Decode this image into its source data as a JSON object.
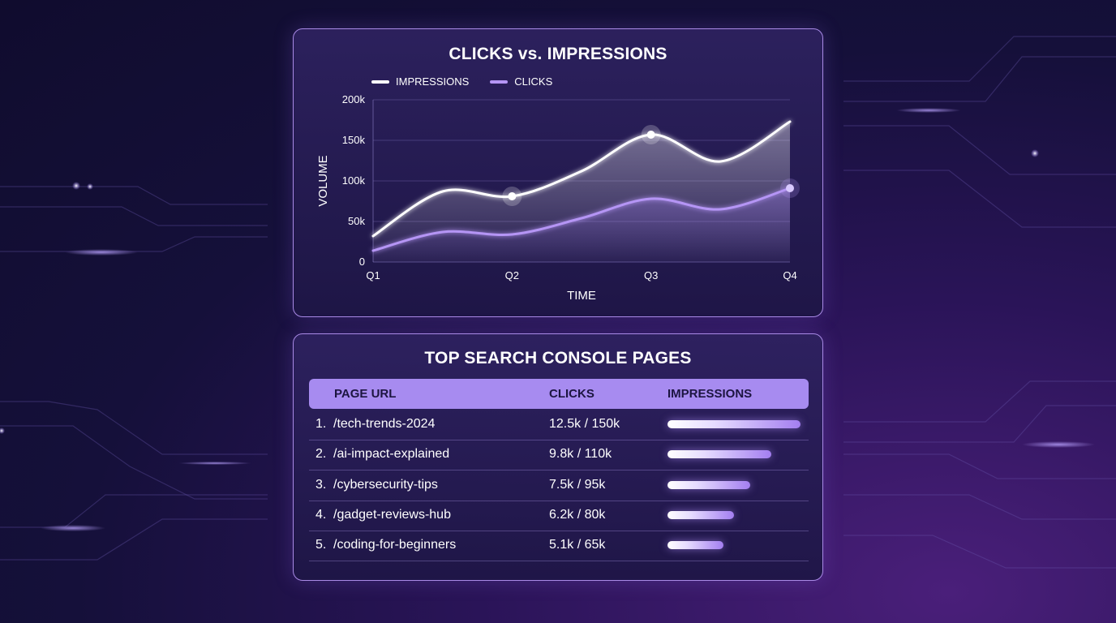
{
  "colors": {
    "impressions": "#ffffff",
    "clicks": "#b595f5",
    "card_border": "#a98ae6",
    "header_bg": "#a78bf0"
  },
  "chart_data": {
    "type": "line",
    "title": "CLICKS vs. IMPRESSIONS",
    "xlabel": "TIME",
    "ylabel": "VOLUME",
    "categories": [
      "Q1",
      "Q2",
      "Q3",
      "Q4"
    ],
    "x": [
      0,
      0.5,
      1,
      1.5,
      2,
      2.5,
      3
    ],
    "ylim": [
      0,
      200000
    ],
    "yticks": [
      0,
      50000,
      100000,
      150000,
      200000
    ],
    "ytick_labels": [
      "0",
      "50k",
      "100k",
      "150k",
      "200k"
    ],
    "grid": true,
    "legend_position": "top-left",
    "series": [
      {
        "name": "IMPRESSIONS",
        "values": [
          32000,
          87000,
          81000,
          112000,
          157000,
          124000,
          173000
        ],
        "highlighted_points": [
          2,
          4
        ]
      },
      {
        "name": "CLICKS",
        "values": [
          14000,
          37000,
          34000,
          54000,
          78000,
          65000,
          91000
        ],
        "highlighted_points": [
          6
        ]
      }
    ]
  },
  "table": {
    "title": "TOP SEARCH CONSOLE PAGES",
    "headers": {
      "url": "PAGE URL",
      "clicks": "CLICKS",
      "impressions": "IMPRESSIONS"
    },
    "rows": [
      {
        "rank": "1.",
        "url": "/tech-trends-2024",
        "value": "12.5k / 150k",
        "impressions_share": 1.0
      },
      {
        "rank": "2.",
        "url": "/ai-impact-explained",
        "value": "9.8k / 110k",
        "impressions_share": 0.78
      },
      {
        "rank": "3.",
        "url": "/cybersecurity-tips",
        "value": "7.5k / 95k",
        "impressions_share": 0.62
      },
      {
        "rank": "4.",
        "url": "/gadget-reviews-hub",
        "value": "6.2k / 80k",
        "impressions_share": 0.5
      },
      {
        "rank": "5.",
        "url": "/coding-for-beginners",
        "value": "5.1k / 65k",
        "impressions_share": 0.42
      }
    ]
  }
}
